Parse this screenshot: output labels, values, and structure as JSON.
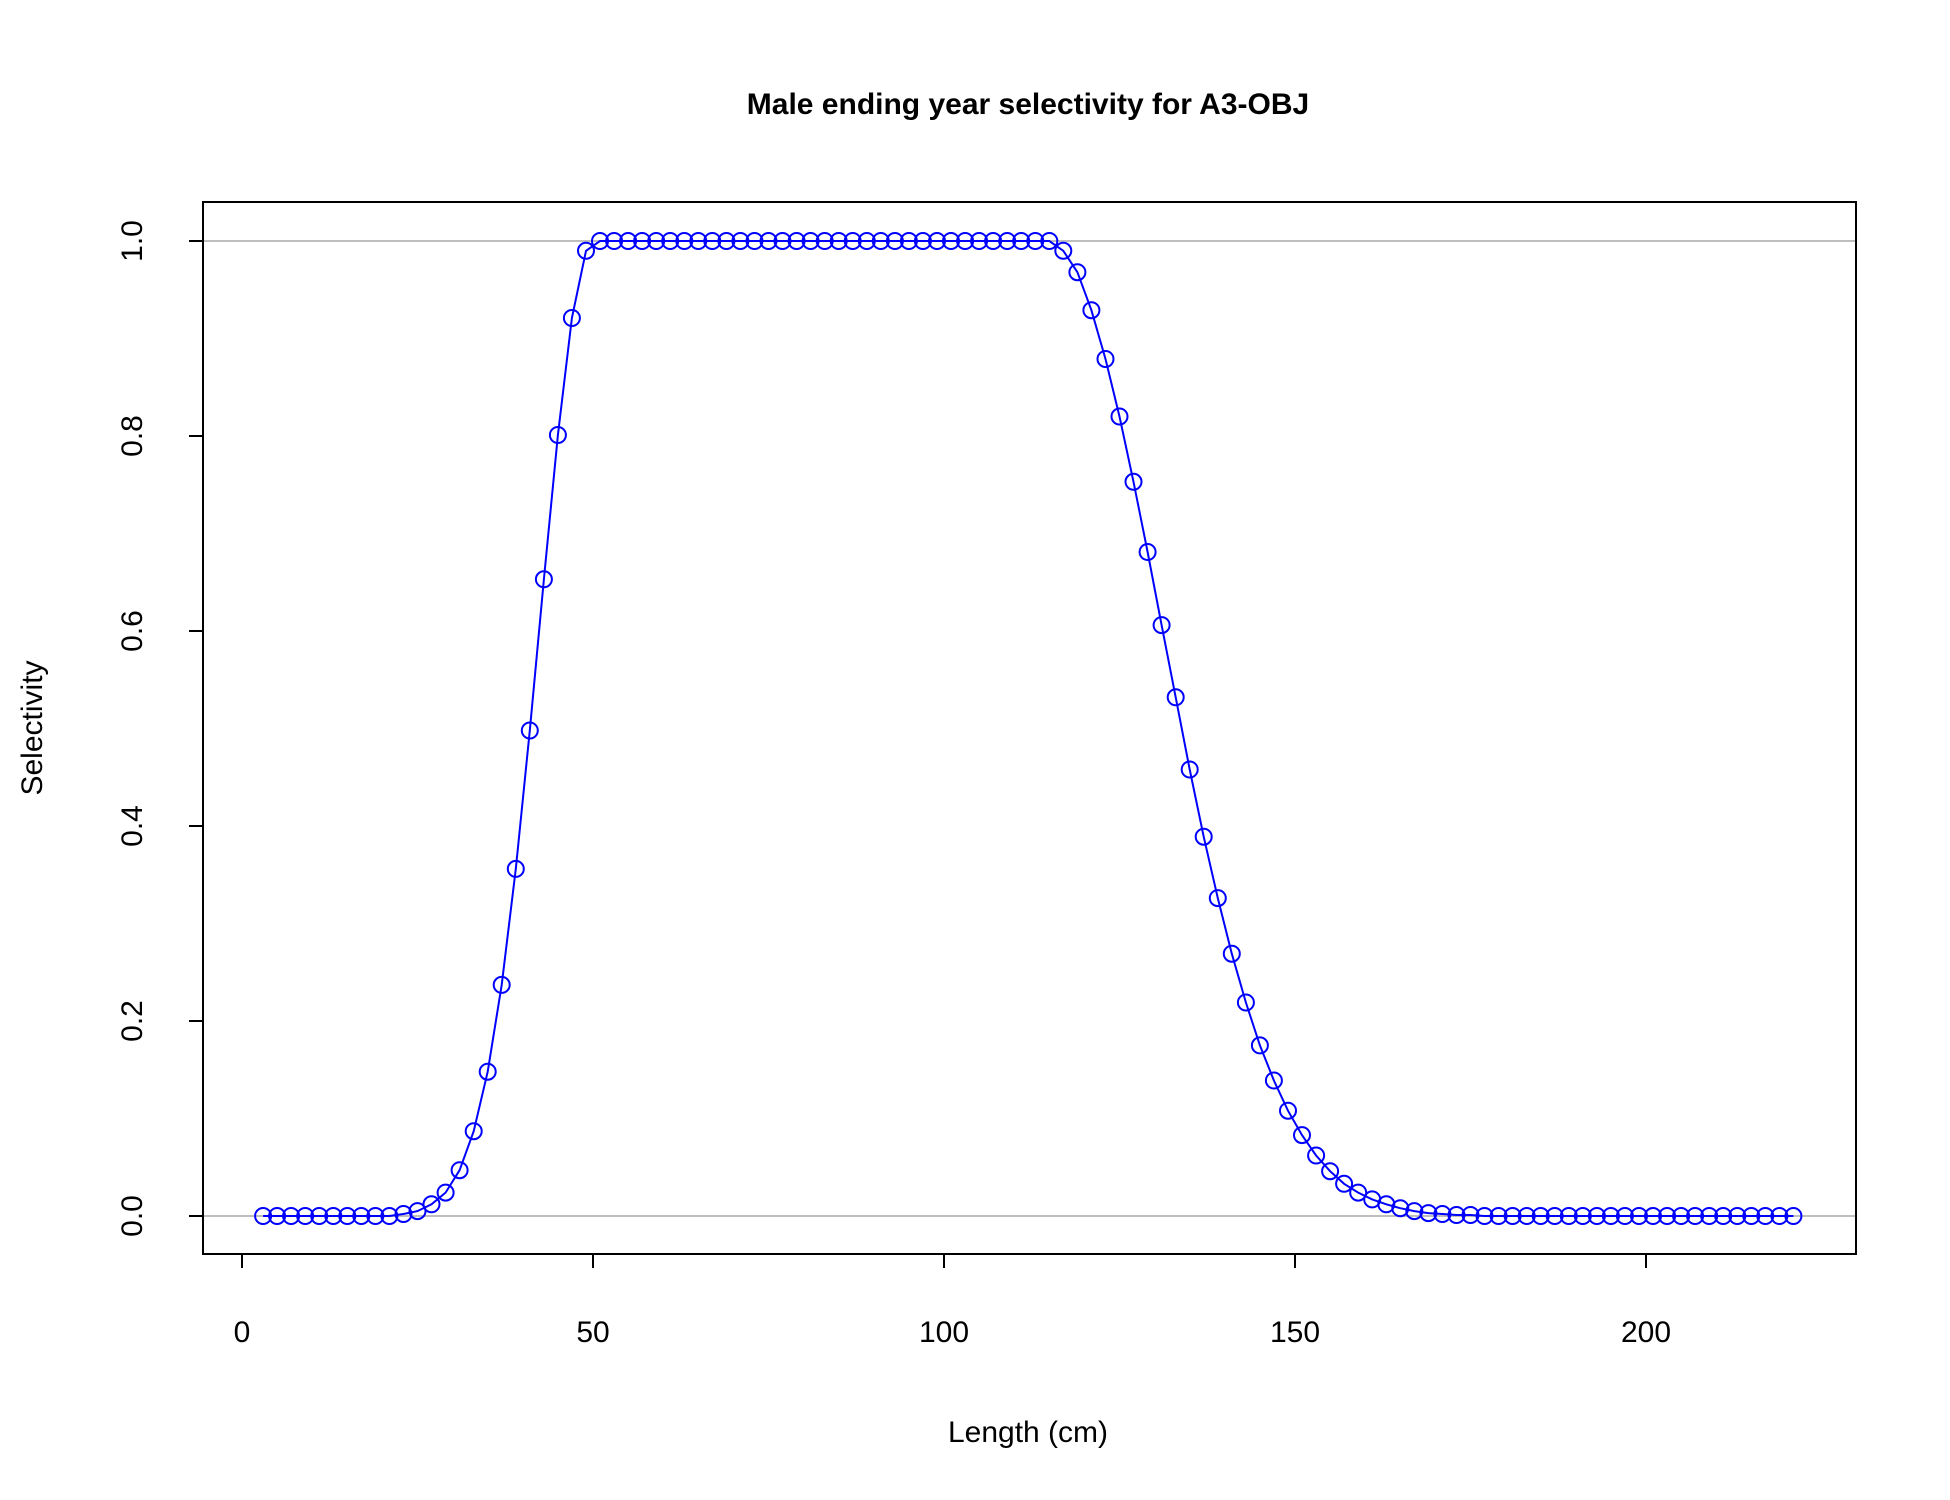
{
  "chart_data": {
    "type": "line",
    "title": "Male ending year selectivity for A3-OBJ",
    "xlabel": "Length (cm)",
    "ylabel": "Selectivity",
    "xlim": [
      0,
      230
    ],
    "ylim": [
      0,
      1
    ],
    "xticks": [
      "0",
      "50",
      "100",
      "150",
      "200"
    ],
    "yticks": [
      "0.0",
      "0.2",
      "0.4",
      "0.6",
      "0.8",
      "1.0"
    ],
    "reference_lines_y": [
      0,
      1
    ],
    "grid": false,
    "legend": "none",
    "series": [
      {
        "color": "#0000ff",
        "marker": "open-circle",
        "x": [
          3,
          5,
          7,
          9,
          11,
          13,
          15,
          17,
          19,
          21,
          23,
          25,
          27,
          29,
          31,
          33,
          35,
          37,
          39,
          41,
          43,
          45,
          47,
          49,
          51,
          53,
          55,
          57,
          59,
          61,
          63,
          65,
          67,
          69,
          71,
          73,
          75,
          77,
          79,
          81,
          83,
          85,
          87,
          89,
          91,
          93,
          95,
          97,
          99,
          101,
          103,
          105,
          107,
          109,
          111,
          113,
          115,
          117,
          119,
          121,
          123,
          125,
          127,
          129,
          131,
          133,
          135,
          137,
          139,
          141,
          143,
          145,
          147,
          149,
          151,
          153,
          155,
          157,
          159,
          161,
          163,
          165,
          167,
          169,
          171,
          173,
          175,
          177,
          179,
          181,
          183,
          185,
          187,
          189,
          191,
          193,
          195,
          197,
          199,
          201,
          203,
          205,
          207,
          209,
          211,
          213,
          215,
          217,
          219,
          221
        ],
        "y": [
          0,
          0,
          0,
          0,
          0,
          0,
          0,
          0,
          0,
          0,
          0.002,
          0.005,
          0.012,
          0.024,
          0.047,
          0.087,
          0.148,
          0.237,
          0.356,
          0.498,
          0.653,
          0.801,
          0.921,
          0.99,
          1,
          1,
          1,
          1,
          1,
          1,
          1,
          1,
          1,
          1,
          1,
          1,
          1,
          1,
          1,
          1,
          1,
          1,
          1,
          1,
          1,
          1,
          1,
          1,
          1,
          1,
          1,
          1,
          1,
          1,
          1,
          1,
          1,
          0.99,
          0.968,
          0.929,
          0.879,
          0.82,
          0.753,
          0.681,
          0.606,
          0.532,
          0.458,
          0.389,
          0.326,
          0.269,
          0.219,
          0.175,
          0.139,
          0.108,
          0.083,
          0.062,
          0.046,
          0.033,
          0.024,
          0.017,
          0.012,
          0.008,
          0.005,
          0.003,
          0.002,
          0.001,
          0.001,
          0,
          0,
          0,
          0,
          0,
          0,
          0,
          0,
          0,
          0,
          0,
          0,
          0,
          0,
          0,
          0,
          0,
          0,
          0,
          0,
          0,
          0,
          0
        ]
      }
    ]
  }
}
